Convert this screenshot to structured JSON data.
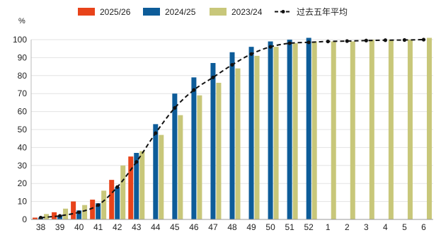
{
  "chart_data": {
    "type": "bar",
    "y_unit": "%",
    "ylim": [
      0,
      100
    ],
    "yticks": [
      0,
      10,
      20,
      30,
      40,
      50,
      60,
      70,
      80,
      90,
      100
    ],
    "grid": true,
    "legend_position": "top",
    "categories": [
      "38",
      "39",
      "40",
      "41",
      "42",
      "43",
      "44",
      "45",
      "46",
      "47",
      "48",
      "49",
      "50",
      "51",
      "52",
      "1",
      "2",
      "3",
      "4",
      "5",
      "6"
    ],
    "series": [
      {
        "name": "2025/26",
        "kind": "bar",
        "color": "#e8431a",
        "values": [
          1,
          4,
          10,
          11,
          22,
          35,
          null,
          null,
          null,
          null,
          null,
          null,
          null,
          null,
          null,
          null,
          null,
          null,
          null,
          null,
          null
        ]
      },
      {
        "name": "2024/25",
        "kind": "bar",
        "color": "#0d5c99",
        "values": [
          1,
          2,
          5,
          9,
          18,
          37,
          53,
          70,
          79,
          87,
          93,
          96,
          99,
          100,
          101,
          null,
          null,
          null,
          null,
          null,
          null
        ]
      },
      {
        "name": "2023/24",
        "kind": "bar",
        "color": "#c8c77a",
        "values": [
          3,
          6,
          8,
          16,
          30,
          38,
          47,
          58,
          69,
          76,
          84,
          91,
          96,
          98,
          99,
          99,
          99,
          100,
          100,
          100,
          101
        ]
      },
      {
        "name": "过去五年平均",
        "kind": "line",
        "color": "#111111",
        "values": [
          1,
          2,
          4,
          8,
          18,
          32,
          48,
          62,
          72,
          79,
          86,
          92,
          96,
          98,
          98.5,
          99,
          99.2,
          99.5,
          99.7,
          99.8,
          100
        ]
      }
    ]
  }
}
